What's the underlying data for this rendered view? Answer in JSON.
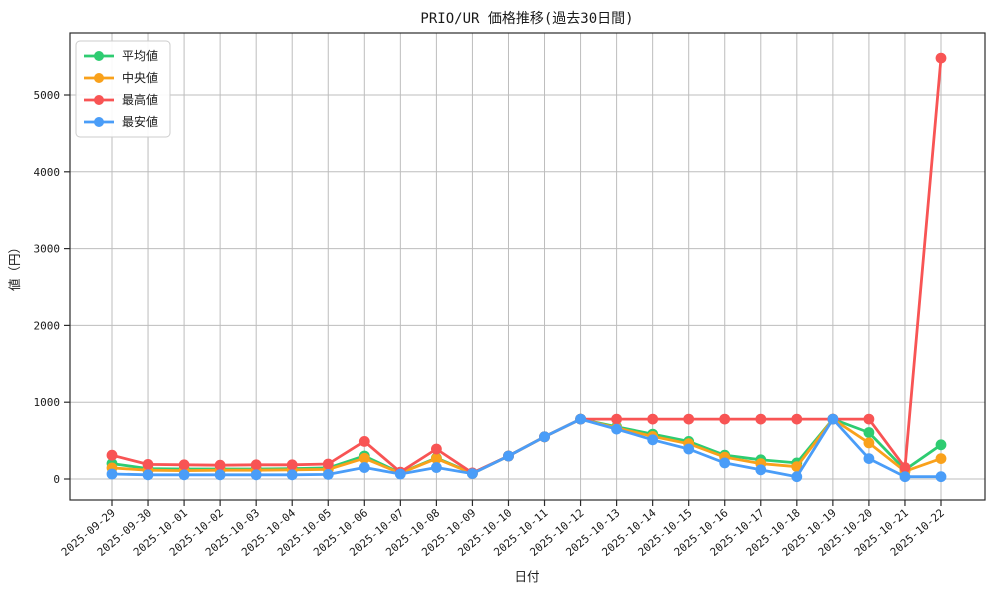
{
  "page": {
    "background": "#ffffff"
  },
  "chart_data": {
    "type": "line",
    "title": "PRIO/UR 価格推移(過去30日間)",
    "xlabel": "日付",
    "ylabel": "値（円）",
    "x": [
      "2025-09-29",
      "2025-09-30",
      "2025-10-01",
      "2025-10-02",
      "2025-10-03",
      "2025-10-04",
      "2025-10-05",
      "2025-10-06",
      "2025-10-07",
      "2025-10-08",
      "2025-10-09",
      "2025-10-10",
      "2025-10-11",
      "2025-10-12",
      "2025-10-13",
      "2025-10-14",
      "2025-10-15",
      "2025-10-16",
      "2025-10-17",
      "2025-10-18",
      "2025-10-19",
      "2025-10-20",
      "2025-10-21",
      "2025-10-22"
    ],
    "series": [
      {
        "id": "average",
        "name": "平均値",
        "color": "#2ecc71",
        "values": [
          200,
          135,
          130,
          130,
          130,
          135,
          145,
          300,
          80,
          275,
          75,
          300,
          550,
          780,
          680,
          585,
          490,
          310,
          250,
          210,
          780,
          605,
          120,
          445
        ]
      },
      {
        "id": "median",
        "name": "中央値",
        "color": "#f9a11b",
        "values": [
          145,
          115,
          110,
          115,
          115,
          120,
          125,
          270,
          75,
          265,
          72,
          300,
          550,
          780,
          665,
          555,
          460,
          285,
          200,
          160,
          780,
          470,
          100,
          265
        ]
      },
      {
        "id": "max",
        "name": "最高値",
        "color": "#f85454",
        "values": [
          310,
          190,
          185,
          180,
          185,
          185,
          195,
          490,
          90,
          390,
          80,
          300,
          550,
          780,
          780,
          780,
          780,
          780,
          780,
          780,
          780,
          780,
          150,
          5480
        ]
      },
      {
        "id": "min",
        "name": "最安値",
        "color": "#4a9df8",
        "values": [
          65,
          55,
          55,
          55,
          55,
          55,
          60,
          150,
          65,
          150,
          70,
          300,
          550,
          780,
          650,
          510,
          390,
          210,
          120,
          30,
          780,
          265,
          30,
          30
        ]
      }
    ],
    "yticks": [
      0,
      1000,
      2000,
      3000,
      4000,
      5000
    ],
    "ylim": [
      -280,
      5810
    ],
    "grid": true,
    "grid_color": "#bdbdbd",
    "spine_color": "#2b2b2b",
    "legend_position": "top-left",
    "marker": "circle"
  }
}
